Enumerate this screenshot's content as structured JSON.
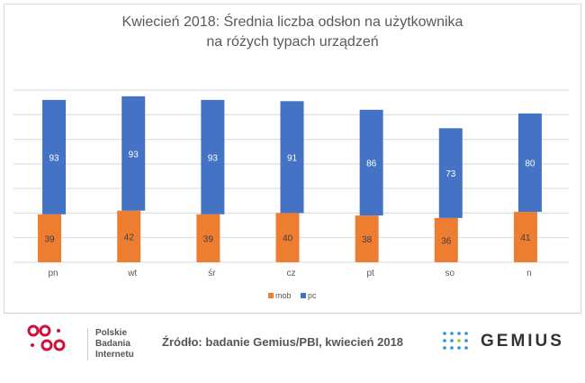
{
  "chart_data": {
    "type": "bar",
    "stacked": true,
    "title": [
      "Kwiecień 2018: Średnia liczba odsłon na użytkownika",
      "na różych typach urządzeń"
    ],
    "categories": [
      "pn",
      "wt",
      "śr",
      "cz",
      "pt",
      "so",
      "n"
    ],
    "series": [
      {
        "name": "mob",
        "color": "#ED7D31",
        "values": [
          39,
          42,
          39,
          40,
          38,
          36,
          41
        ]
      },
      {
        "name": "pc",
        "color": "#4472C4",
        "values": [
          93,
          93,
          93,
          91,
          86,
          73,
          80
        ]
      }
    ],
    "ylim": [
      0,
      140
    ],
    "grid": true,
    "y_tick_labels_shown": false,
    "legend": "bottom"
  },
  "footer": {
    "pbi_logo_text": [
      "Polskie",
      "Badania",
      "Internetu"
    ],
    "source": "Źródło: badanie Gemius/PBI, kwiecień 2018",
    "gemius_logo_text": "GEMIUS"
  }
}
